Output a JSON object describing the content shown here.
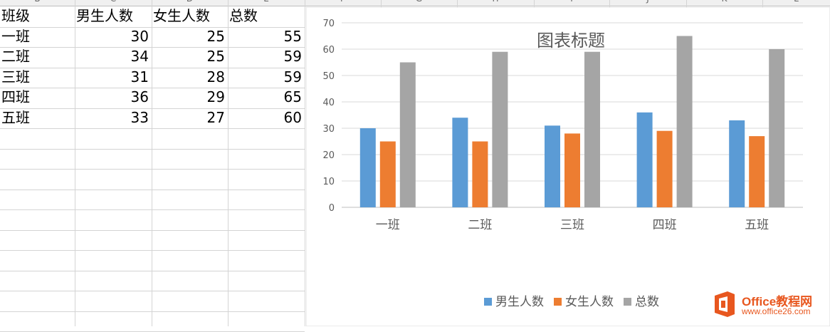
{
  "spreadsheet": {
    "column_headers": [
      "B",
      "C",
      "D",
      "E",
      "F",
      "G",
      "H",
      "I",
      "J",
      "K",
      "L"
    ],
    "table": {
      "headers": [
        "班级",
        "男生人数",
        "女生人数",
        "总数"
      ],
      "rows": [
        [
          "一班",
          "30",
          "25",
          "55"
        ],
        [
          "二班",
          "34",
          "25",
          "59"
        ],
        [
          "三班",
          "31",
          "28",
          "59"
        ],
        [
          "四班",
          "36",
          "29",
          "65"
        ],
        [
          "五班",
          "33",
          "27",
          "60"
        ]
      ]
    }
  },
  "chart_data": {
    "type": "bar",
    "title": "图表标题",
    "categories": [
      "一班",
      "二班",
      "三班",
      "四班",
      "五班"
    ],
    "series": [
      {
        "name": "男生人数",
        "values": [
          30,
          34,
          31,
          36,
          33
        ],
        "color": "#5b9bd5"
      },
      {
        "name": "女生人数",
        "values": [
          25,
          25,
          28,
          29,
          27
        ],
        "color": "#ed7d31"
      },
      {
        "name": "总数",
        "values": [
          55,
          59,
          59,
          65,
          60
        ],
        "color": "#a5a5a5"
      }
    ],
    "ylim": [
      0,
      70
    ],
    "yticks": [
      "0",
      "10",
      "20",
      "30",
      "40",
      "50",
      "60",
      "70"
    ],
    "grid": true,
    "legend": "bottom"
  },
  "watermark": {
    "brand": "Office教程网",
    "url": "www.office26.com"
  }
}
